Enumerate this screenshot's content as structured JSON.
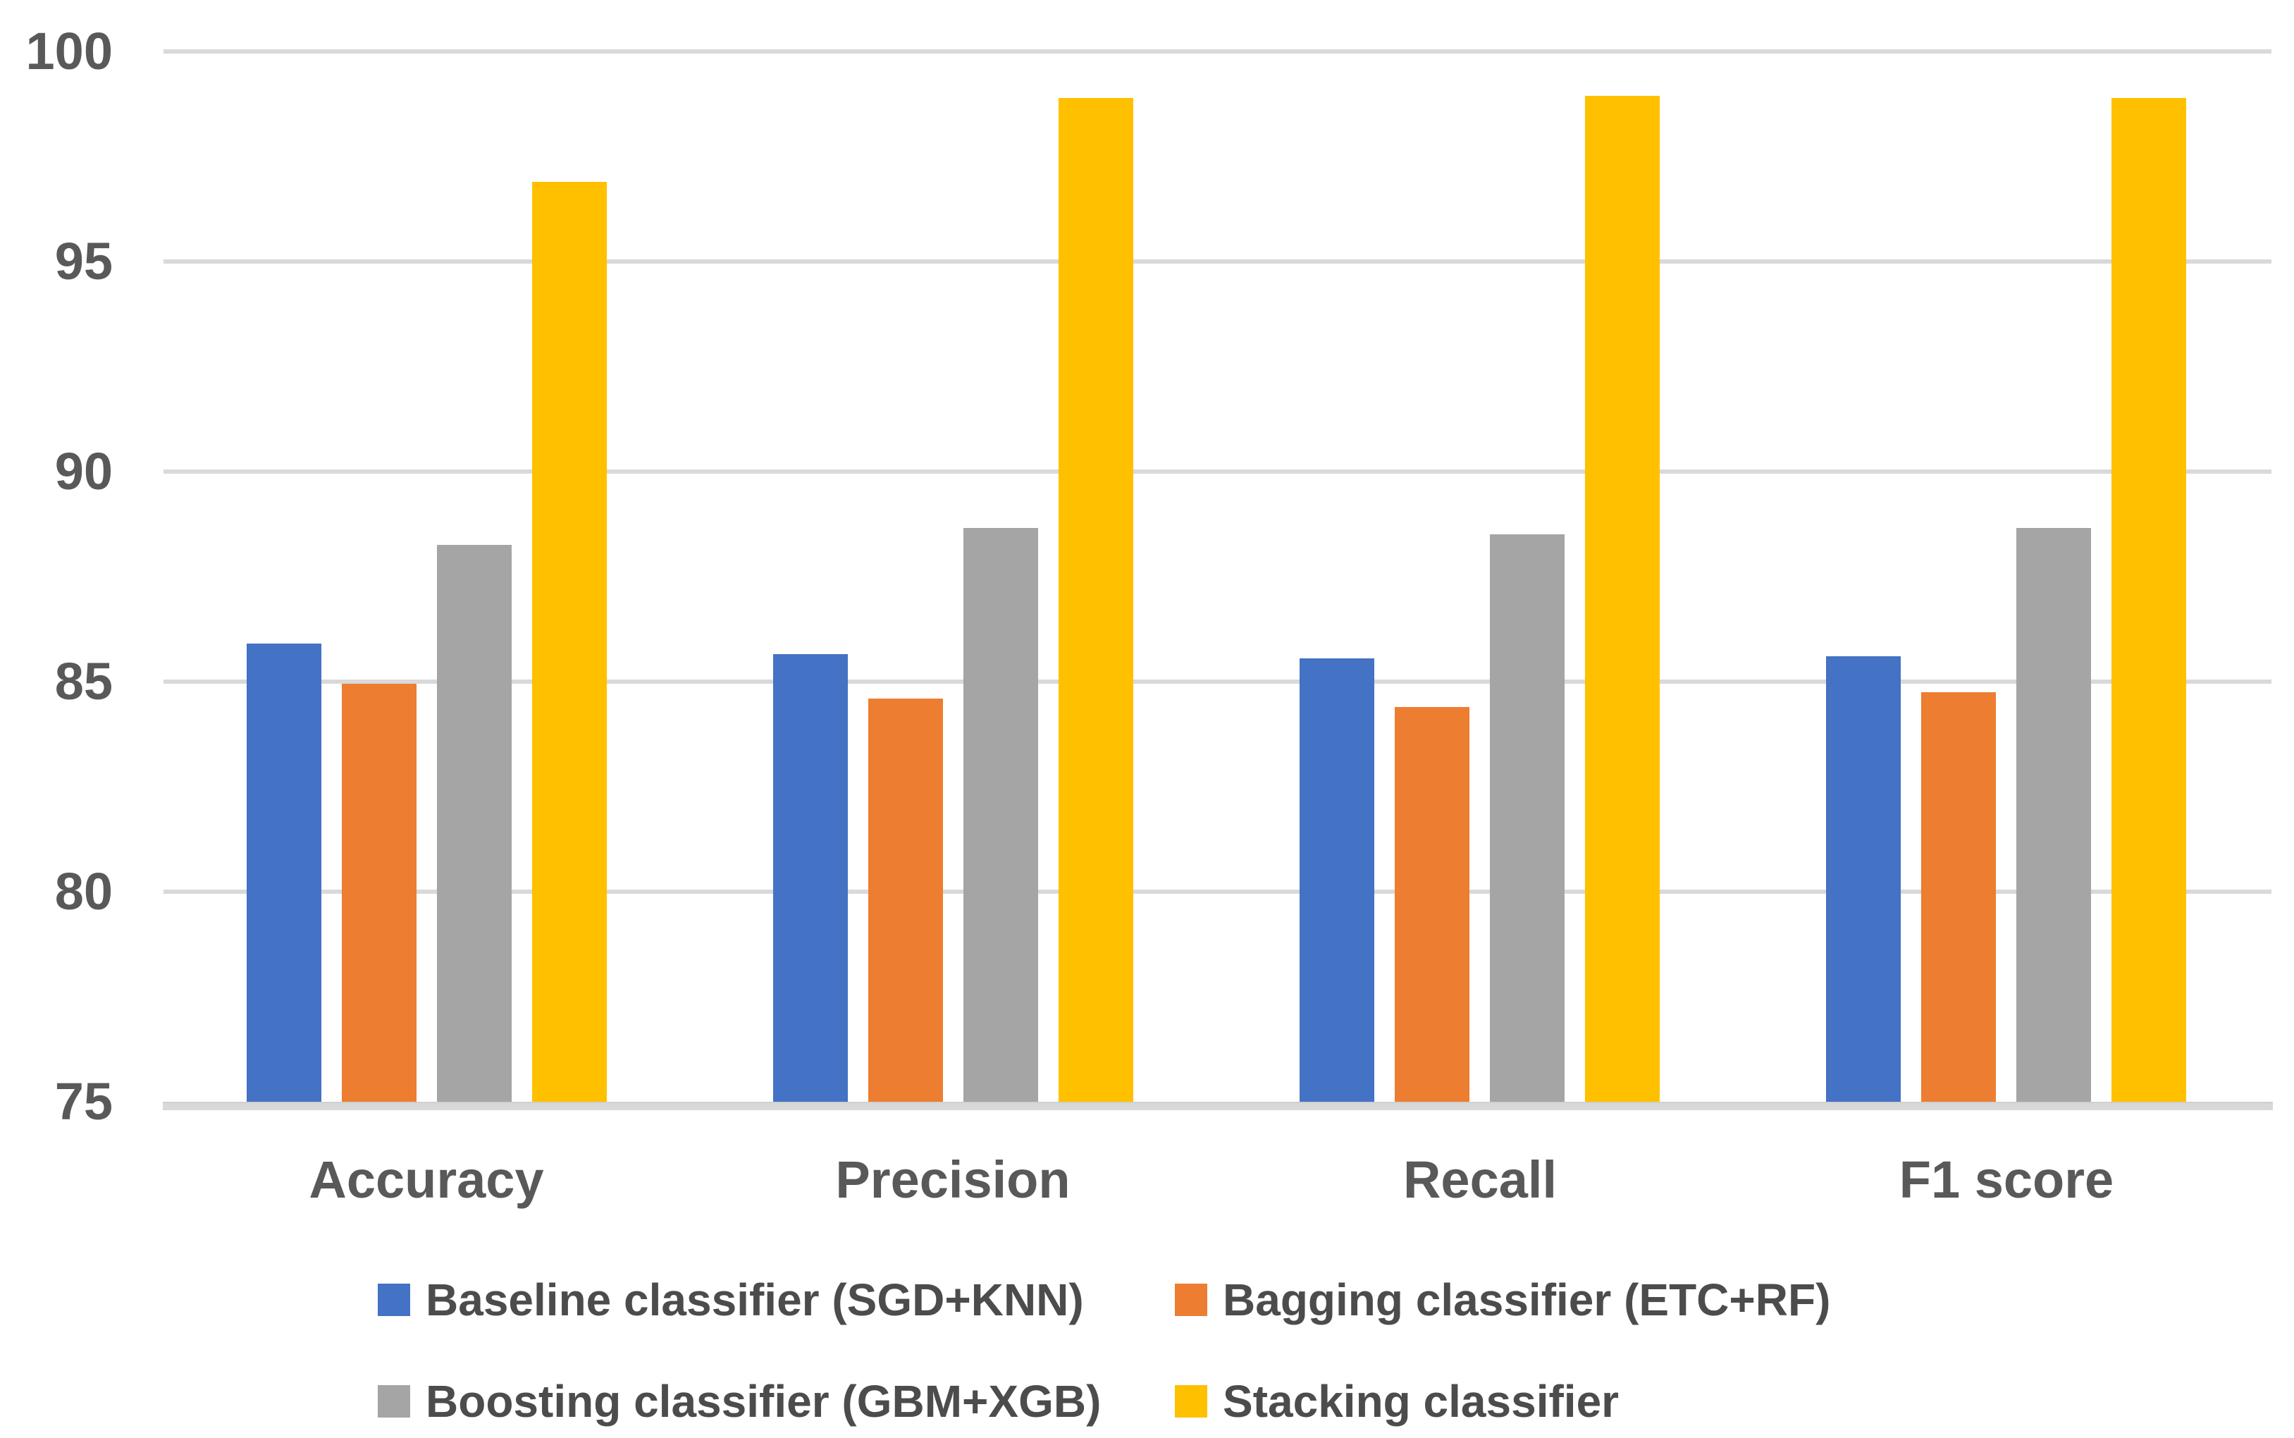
{
  "chart_data": {
    "type": "bar",
    "title": "",
    "categories": [
      "Accuracy",
      "Precision",
      "Recall",
      "F1 score"
    ],
    "series": [
      {
        "name": "Baseline classifier (SGD+KNN)",
        "color": "#4472C4",
        "values": [
          85.9,
          85.65,
          85.55,
          85.6
        ]
      },
      {
        "name": "Bagging classifier (ETC+RF)",
        "color": "#ED7D31",
        "values": [
          84.95,
          84.6,
          84.4,
          84.75
        ]
      },
      {
        "name": "Boosting classifier (GBM+XGB)",
        "color": "#A5A5A5",
        "values": [
          88.25,
          88.65,
          88.5,
          88.65
        ]
      },
      {
        "name": "Stacking classifier",
        "color": "#FFC000",
        "values": [
          96.9,
          98.9,
          98.95,
          98.9
        ]
      }
    ],
    "yticks": [
      75,
      80,
      85,
      90,
      95,
      100
    ],
    "ylim": [
      75,
      100
    ],
    "xlabel": "",
    "ylabel": "",
    "grid": true,
    "legend_position": "bottom",
    "legend_rows": [
      [
        0,
        1
      ],
      [
        2,
        3
      ]
    ],
    "colors": {
      "gridline": "#D9D9D9",
      "axis_text": "#595959",
      "legend_text": "#4C4C4C",
      "background": "#FFFFFF"
    }
  }
}
